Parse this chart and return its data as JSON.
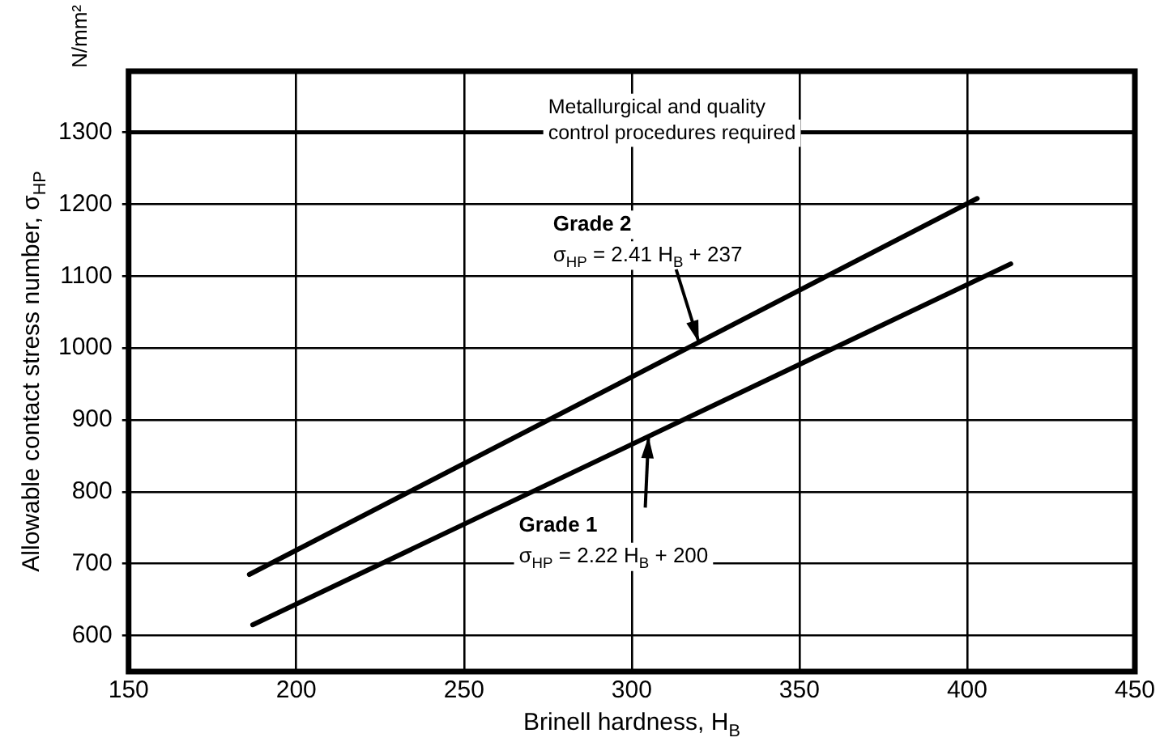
{
  "chart_data": {
    "type": "line",
    "xlabel": "Brinell hardness, H$_{B}$",
    "ylabel": "Allowable contact stress number, σ$_{HP}$",
    "xlim": [
      150,
      450
    ],
    "xticks": [
      150,
      200,
      250,
      300,
      350,
      400,
      450
    ],
    "ylim": [
      550,
      1385
    ],
    "yticks": [
      600,
      700,
      800,
      900,
      1000,
      1100,
      1200,
      1300
    ],
    "grid": true,
    "legend": false,
    "series": [
      {
        "color": "#000000",
        "x": [
          186,
          403
        ],
        "values": [
          685,
          1208
        ]
      },
      {
        "color": "#000000",
        "x": [
          187,
          413
        ],
        "values": [
          615,
          1117
        ]
      }
    ],
    "annotations": [
      "N/mm²",
      {
        "text": "Grade 2\nσ$_{HP}$ = 2.41 H$_{B}$ + 237",
        "x": 320,
        "y": 1008
      },
      {
        "text": "Grade 1\nσ$_{HP}$ = 2.22 H$_{B}$ + 200",
        "x": 305,
        "y": 877
      }
    ],
    "ref_lines": [
      {
        "axis": "y",
        "value": 1300,
        "label": "Metallurgical and quality control procedures required"
      }
    ]
  }
}
